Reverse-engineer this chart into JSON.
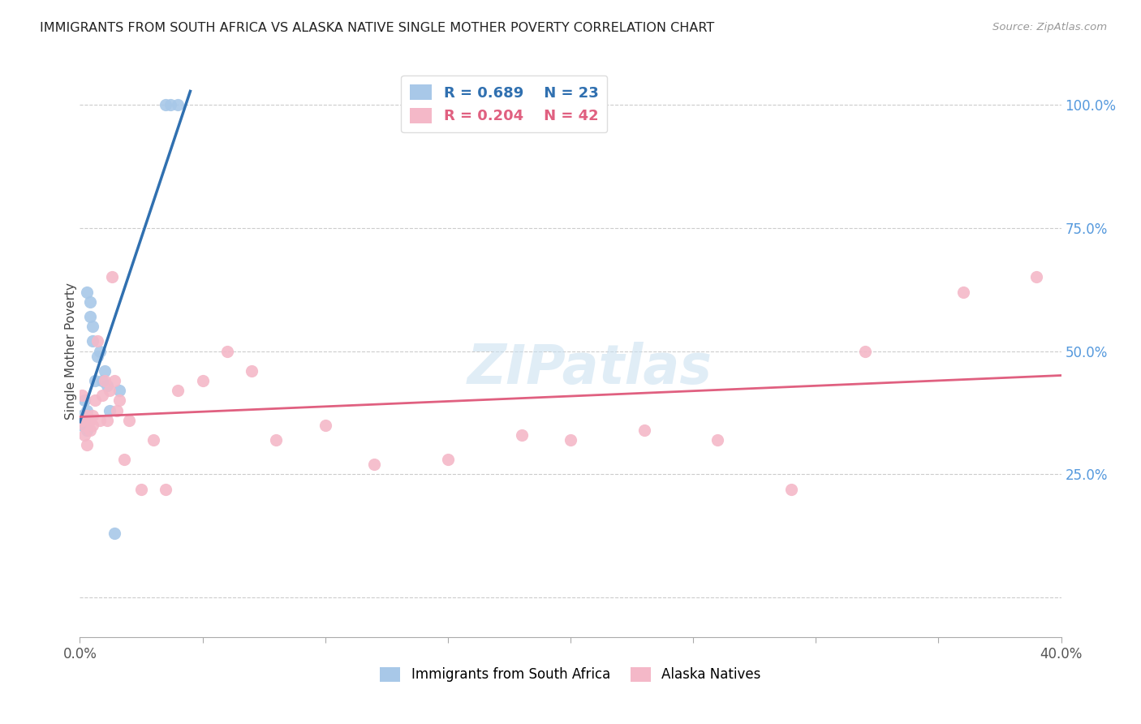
{
  "title": "IMMIGRANTS FROM SOUTH AFRICA VS ALASKA NATIVE SINGLE MOTHER POVERTY CORRELATION CHART",
  "source": "Source: ZipAtlas.com",
  "ylabel": "Single Mother Poverty",
  "watermark": "ZIPatlas",
  "blue_color": "#a8c8e8",
  "pink_color": "#f4b8c8",
  "blue_line_color": "#3070b0",
  "pink_line_color": "#e06080",
  "legend_r_blue": "R = 0.689",
  "legend_n_blue": "N = 23",
  "legend_r_pink": "R = 0.204",
  "legend_n_pink": "N = 42",
  "xmin": 0.0,
  "xmax": 0.4,
  "ymin": -0.08,
  "ymax": 1.08,
  "right_yticks": [
    0.0,
    0.25,
    0.5,
    0.75,
    1.0
  ],
  "right_yticklabels": [
    "",
    "25.0%",
    "50.0%",
    "75.0%",
    "100.0%"
  ],
  "blue_x": [
    0.001,
    0.001,
    0.002,
    0.002,
    0.003,
    0.003,
    0.003,
    0.004,
    0.004,
    0.005,
    0.005,
    0.006,
    0.007,
    0.008,
    0.009,
    0.01,
    0.011,
    0.012,
    0.014,
    0.016,
    0.035,
    0.037,
    0.04
  ],
  "blue_y": [
    0.35,
    0.37,
    0.36,
    0.4,
    0.34,
    0.38,
    0.62,
    0.6,
    0.57,
    0.55,
    0.52,
    0.44,
    0.49,
    0.5,
    0.44,
    0.46,
    0.43,
    0.38,
    0.13,
    0.42,
    1.0,
    1.0,
    1.0
  ],
  "pink_x": [
    0.001,
    0.001,
    0.002,
    0.002,
    0.003,
    0.003,
    0.004,
    0.004,
    0.005,
    0.005,
    0.006,
    0.007,
    0.008,
    0.009,
    0.01,
    0.011,
    0.012,
    0.013,
    0.014,
    0.015,
    0.016,
    0.018,
    0.02,
    0.025,
    0.03,
    0.035,
    0.04,
    0.05,
    0.06,
    0.07,
    0.08,
    0.1,
    0.12,
    0.15,
    0.18,
    0.2,
    0.23,
    0.26,
    0.29,
    0.32,
    0.36,
    0.39
  ],
  "pink_y": [
    0.41,
    0.36,
    0.35,
    0.33,
    0.37,
    0.31,
    0.36,
    0.34,
    0.35,
    0.37,
    0.4,
    0.52,
    0.36,
    0.41,
    0.44,
    0.36,
    0.42,
    0.65,
    0.44,
    0.38,
    0.4,
    0.28,
    0.36,
    0.22,
    0.32,
    0.22,
    0.42,
    0.44,
    0.5,
    0.46,
    0.32,
    0.35,
    0.27,
    0.28,
    0.33,
    0.32,
    0.34,
    0.32,
    0.22,
    0.5,
    0.62,
    0.65
  ]
}
